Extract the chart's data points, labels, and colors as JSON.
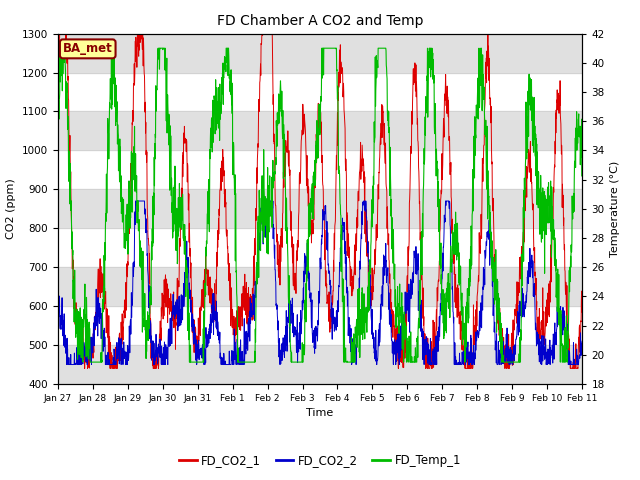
{
  "title": "FD Chamber A CO2 and Temp",
  "xlabel": "Time",
  "ylabel_left": "CO2 (ppm)",
  "ylabel_right": "Temperature (°C)",
  "ylim_left": [
    400,
    1300
  ],
  "ylim_right": [
    18,
    42
  ],
  "annotation_text": "BA_met",
  "annotation_color": "#880000",
  "annotation_bg": "#ffff99",
  "bg_band_color": "#e0e0e0",
  "legend_labels": [
    "FD_CO2_1",
    "FD_CO2_2",
    "FD_Temp_1"
  ],
  "legend_colors": [
    "#dd0000",
    "#0000cc",
    "#00bb00"
  ],
  "xtick_labels": [
    "Jan 27",
    "Jan 28",
    "Jan 29",
    "Jan 30",
    "Jan 31",
    "Feb 1",
    "Feb 2",
    "Feb 3",
    "Feb 4",
    "Feb 5",
    "Feb 6",
    "Feb 7",
    "Feb 8",
    "Feb 9",
    "Feb 10",
    "Feb 11"
  ],
  "yticks_left": [
    400,
    500,
    600,
    700,
    800,
    900,
    1000,
    1100,
    1200,
    1300
  ],
  "yticks_right": [
    18,
    20,
    22,
    24,
    26,
    28,
    30,
    32,
    34,
    36,
    38,
    40,
    42
  ],
  "num_points": 2000,
  "seed": 7
}
